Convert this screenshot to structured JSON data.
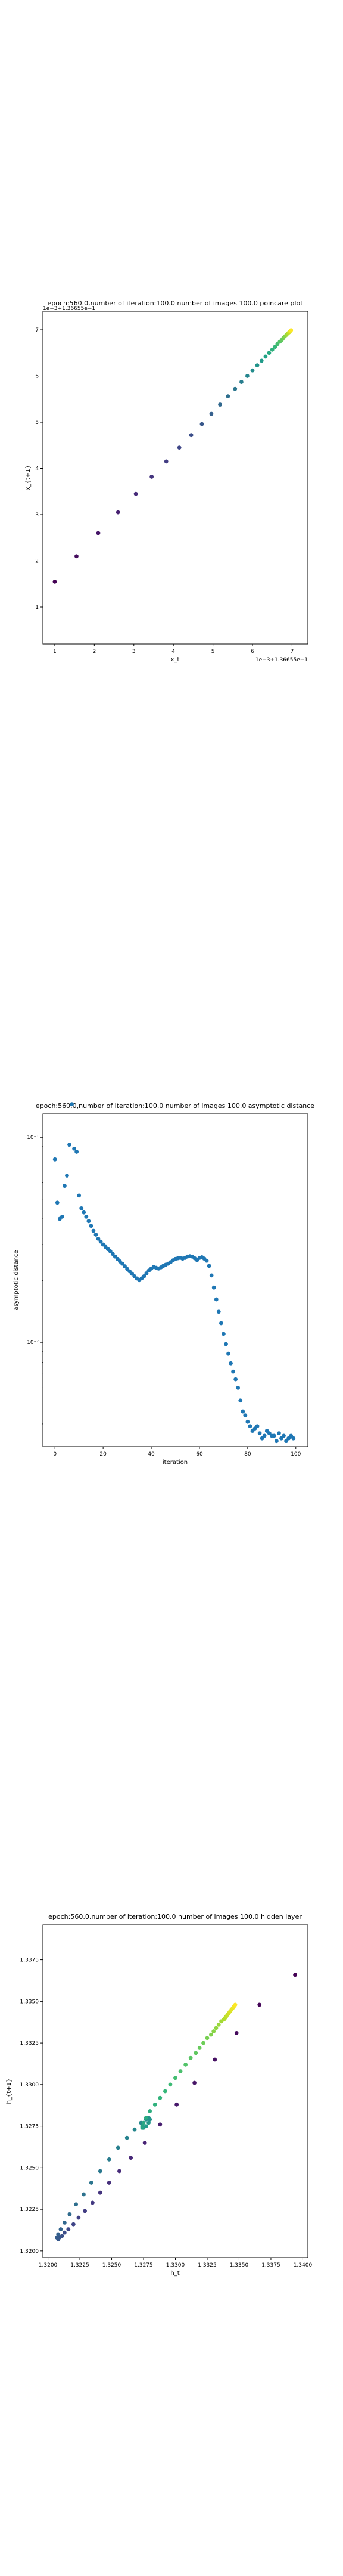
{
  "chart_data": [
    {
      "type": "scatter",
      "title": "epoch:560.0,number of iteration:100.0 number of images 100.0 poincare plot",
      "xlabel": "x_t",
      "ylabel": "x_{t+1}",
      "x_offset_text": "1e−3+1.36655e−1",
      "y_offset_text": "1e−3+1.36655e−1",
      "xlim": [
        0.7,
        7.4
      ],
      "ylim": [
        0.2,
        7.4
      ],
      "xticks": [
        1,
        2,
        3,
        4,
        5,
        6,
        7
      ],
      "yticks": [
        1,
        2,
        3,
        4,
        5,
        6,
        7
      ],
      "colormap": "viridis",
      "colors": {
        "start": "#440154",
        "end": "#fde725"
      },
      "series": [
        {
          "x": [
            1.0,
            1.55,
            2.1,
            2.6,
            3.05,
            3.45,
            3.82,
            4.15,
            4.45,
            4.72,
            4.96,
            5.18,
            5.38,
            5.56,
            5.72,
            5.87,
            6.0,
            6.12,
            6.23,
            6.33,
            6.42,
            6.5,
            6.57,
            6.63,
            6.69,
            6.74,
            6.78,
            6.82,
            6.86,
            6.89,
            6.92,
            6.94,
            6.96,
            6.975
          ],
          "y": [
            1.55,
            2.1,
            2.6,
            3.05,
            3.45,
            3.82,
            4.15,
            4.45,
            4.72,
            4.96,
            5.18,
            5.38,
            5.56,
            5.72,
            5.87,
            6.0,
            6.12,
            6.23,
            6.33,
            6.42,
            6.5,
            6.57,
            6.63,
            6.69,
            6.74,
            6.78,
            6.82,
            6.86,
            6.89,
            6.92,
            6.94,
            6.96,
            6.975,
            6.99
          ]
        }
      ]
    },
    {
      "type": "scatter",
      "title": "epoch:560.0,number of iteration:100.0  number of images 100.0 asymptotic distance",
      "xlabel": "iteration",
      "ylabel": "asymptotic distance",
      "yscale": "log",
      "xlim": [
        -5,
        105
      ],
      "ylim": [
        0.0031,
        0.13
      ],
      "xticks": [
        0,
        20,
        40,
        60,
        80,
        100
      ],
      "yticks": [
        0.1,
        0.01
      ],
      "ytick_labels": [
        "10⁻¹",
        "10⁻²"
      ],
      "colors": {
        "marker": "#1f77b4"
      },
      "series": [
        {
          "x": [
            0,
            1,
            2,
            3,
            4,
            5,
            6,
            7,
            8,
            9,
            10,
            11,
            12,
            13,
            14,
            15,
            16,
            17,
            18,
            19,
            20,
            21,
            22,
            23,
            24,
            25,
            26,
            27,
            28,
            29,
            30,
            31,
            32,
            33,
            34,
            35,
            36,
            37,
            38,
            39,
            40,
            41,
            42,
            43,
            44,
            45,
            46,
            47,
            48,
            49,
            50,
            51,
            52,
            53,
            54,
            55,
            56,
            57,
            58,
            59,
            60,
            61,
            62,
            63,
            64,
            65,
            66,
            67,
            68,
            69,
            70,
            71,
            72,
            73,
            74,
            75,
            76,
            77,
            78,
            79,
            80,
            81,
            82,
            83,
            84,
            85,
            86,
            87,
            88,
            89,
            90,
            91,
            92,
            93,
            94,
            95,
            96,
            97,
            98,
            99
          ],
          "y": [
            0.078,
            0.048,
            0.04,
            0.041,
            0.058,
            0.065,
            0.092,
            0.145,
            0.088,
            0.085,
            0.052,
            0.045,
            0.043,
            0.041,
            0.039,
            0.037,
            0.035,
            0.0335,
            0.032,
            0.031,
            0.03,
            0.0292,
            0.0285,
            0.0278,
            0.027,
            0.0262,
            0.0255,
            0.0248,
            0.0242,
            0.0235,
            0.0228,
            0.0222,
            0.0216,
            0.021,
            0.0205,
            0.0201,
            0.0205,
            0.021,
            0.0217,
            0.0224,
            0.0229,
            0.0233,
            0.0231,
            0.0229,
            0.0232,
            0.0236,
            0.0239,
            0.0242,
            0.0246,
            0.0251,
            0.0255,
            0.0257,
            0.0258,
            0.0256,
            0.0258,
            0.0262,
            0.0263,
            0.0262,
            0.0257,
            0.0252,
            0.0258,
            0.026,
            0.0256,
            0.025,
            0.0236,
            0.0212,
            0.0185,
            0.0162,
            0.0141,
            0.0124,
            0.011,
            0.0098,
            0.0088,
            0.0079,
            0.0072,
            0.0066,
            0.006,
            0.0052,
            0.0046,
            0.0044,
            0.0041,
            0.0039,
            0.0037,
            0.0038,
            0.0039,
            0.0036,
            0.0034,
            0.0035,
            0.0037,
            0.0036,
            0.0035,
            0.0035,
            0.0033,
            0.0036,
            0.0034,
            0.0035,
            0.0033,
            0.0034,
            0.0035,
            0.0034
          ]
        }
      ]
    },
    {
      "type": "scatter",
      "title": "epoch:560.0,number of iteration:100.0  number of images 100.0 hidden layer",
      "xlabel": "h_t",
      "ylabel": "h_{t+1}",
      "xlim": [
        1.3196,
        1.3404
      ],
      "ylim": [
        1.3196,
        1.3396
      ],
      "xticks": [
        1.32,
        1.3225,
        1.325,
        1.3275,
        1.33,
        1.3325,
        1.335,
        1.3375,
        1.34
      ],
      "xtick_labels": [
        "1.3200",
        "1.3225",
        "1.3250",
        "1.3275",
        "1.3300",
        "1.3325",
        "1.3350",
        "1.3375",
        "1.3400"
      ],
      "yticks": [
        1.32,
        1.3225,
        1.325,
        1.3275,
        1.33,
        1.3325,
        1.335,
        1.3375
      ],
      "ytick_labels": [
        "1.3200",
        "1.3225",
        "1.3250",
        "1.3275",
        "1.3300",
        "1.3325",
        "1.3350",
        "1.3375"
      ],
      "colormap": "viridis",
      "colors": {
        "start": "#440154",
        "end": "#fde725"
      },
      "series": [
        {
          "x": [
            1.3394,
            1.3366,
            1.3348,
            1.3331,
            1.3315,
            1.3301,
            1.3288,
            1.3276,
            1.3265,
            1.3256,
            1.3248,
            1.3241,
            1.3235,
            1.3229,
            1.3224,
            1.322,
            1.3216,
            1.3213,
            1.3211,
            1.3209,
            1.3208,
            1.3207,
            1.3208,
            1.321,
            1.3213,
            1.3217,
            1.3222,
            1.3228,
            1.3234,
            1.3241,
            1.3248,
            1.3255,
            1.3262,
            1.3268,
            1.3273,
            1.3277,
            1.3279,
            1.328,
            1.3279,
            1.3277,
            1.3275,
            1.3274,
            1.3274,
            1.3275,
            1.3277,
            1.328,
            1.3284,
            1.3288,
            1.3292,
            1.3296,
            1.33,
            1.3304,
            1.3308,
            1.3312,
            1.3316,
            1.3319,
            1.3322,
            1.3325,
            1.3328,
            1.333,
            1.3332,
            1.3334,
            1.3336,
            1.3338,
            1.3339,
            1.334,
            1.3341,
            1.3342,
            1.3343,
            1.3344,
            1.3345,
            1.3346,
            1.3347
          ],
          "y": [
            1.3366,
            1.3348,
            1.3331,
            1.3315,
            1.3301,
            1.3288,
            1.3276,
            1.3265,
            1.3256,
            1.3248,
            1.3241,
            1.3235,
            1.3229,
            1.3224,
            1.322,
            1.3216,
            1.3213,
            1.3211,
            1.3209,
            1.3208,
            1.3207,
            1.3208,
            1.321,
            1.3213,
            1.3217,
            1.3222,
            1.3228,
            1.3234,
            1.3241,
            1.3248,
            1.3255,
            1.3262,
            1.3268,
            1.3273,
            1.3277,
            1.3279,
            1.328,
            1.3279,
            1.3277,
            1.3275,
            1.3274,
            1.3274,
            1.3275,
            1.3277,
            1.328,
            1.3284,
            1.3288,
            1.3292,
            1.3296,
            1.33,
            1.3304,
            1.3308,
            1.3312,
            1.3316,
            1.3319,
            1.3322,
            1.3325,
            1.3328,
            1.333,
            1.3332,
            1.3334,
            1.3336,
            1.3338,
            1.3339,
            1.334,
            1.3341,
            1.3342,
            1.3343,
            1.3344,
            1.3345,
            1.3346,
            1.3347,
            1.3348
          ]
        }
      ]
    }
  ]
}
